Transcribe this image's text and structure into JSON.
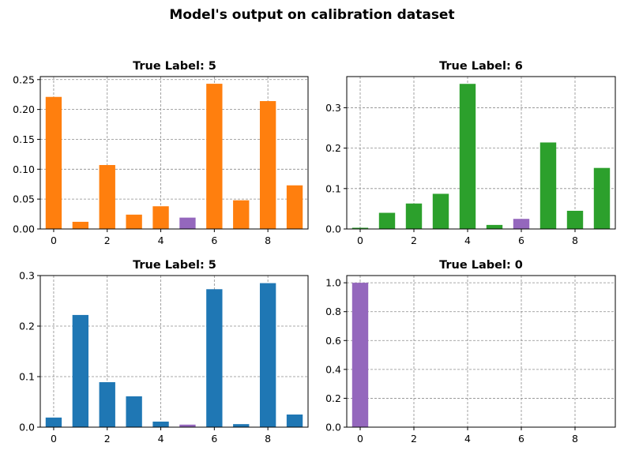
{
  "figure": {
    "title": "Model's output on calibration dataset"
  },
  "colors": {
    "highlight": "#9467bd",
    "grid": "#8c8c8c"
  },
  "chart_data": [
    {
      "type": "bar",
      "title": "True Label: 5",
      "categories": [
        0,
        1,
        2,
        3,
        4,
        5,
        6,
        7,
        8,
        9
      ],
      "values": [
        0.221,
        0.012,
        0.107,
        0.024,
        0.038,
        0.019,
        0.243,
        0.048,
        0.214,
        0.073
      ],
      "color": "#ff7f0e",
      "highlight_index": 5,
      "ylim": [
        0,
        0.255
      ],
      "xlim": [
        -0.5,
        9.5
      ],
      "xticks": [
        0,
        2,
        4,
        6,
        8
      ],
      "xtick_labels": [
        "0",
        "2",
        "4",
        "6",
        "8"
      ],
      "yticks": [
        0,
        0.05,
        0.1,
        0.15,
        0.2,
        0.25
      ],
      "ytick_labels": [
        "0.00",
        "0.05",
        "0.10",
        "0.15",
        "0.20",
        "0.25"
      ],
      "grid": true
    },
    {
      "type": "bar",
      "title": "True Label: 6",
      "categories": [
        0,
        1,
        2,
        3,
        4,
        5,
        6,
        7,
        8,
        9
      ],
      "values": [
        0.003,
        0.04,
        0.063,
        0.087,
        0.359,
        0.01,
        0.025,
        0.214,
        0.045,
        0.151
      ],
      "color": "#2ca02c",
      "highlight_index": 6,
      "ylim": [
        0,
        0.377
      ],
      "xlim": [
        -0.5,
        9.5
      ],
      "xticks": [
        0,
        2,
        4,
        6,
        8
      ],
      "xtick_labels": [
        "0",
        "2",
        "4",
        "6",
        "8"
      ],
      "yticks": [
        0,
        0.1,
        0.2,
        0.3
      ],
      "ytick_labels": [
        "0.0",
        "0.1",
        "0.2",
        "0.3"
      ],
      "grid": true
    },
    {
      "type": "bar",
      "title": "True Label: 5",
      "categories": [
        0,
        1,
        2,
        3,
        4,
        5,
        6,
        7,
        8,
        9
      ],
      "values": [
        0.019,
        0.222,
        0.089,
        0.061,
        0.011,
        0.005,
        0.273,
        0.006,
        0.285,
        0.025
      ],
      "color": "#1f77b4",
      "highlight_index": 5,
      "ylim": [
        0,
        0.3
      ],
      "xlim": [
        -0.5,
        9.5
      ],
      "xticks": [
        0,
        2,
        4,
        6,
        8
      ],
      "xtick_labels": [
        "0",
        "2",
        "4",
        "6",
        "8"
      ],
      "yticks": [
        0,
        0.1,
        0.2,
        0.3
      ],
      "ytick_labels": [
        "0.0",
        "0.1",
        "0.2",
        "0.3"
      ],
      "grid": true
    },
    {
      "type": "bar",
      "title": "True Label: 0",
      "categories": [
        0,
        1,
        2,
        3,
        4,
        5,
        6,
        7,
        8,
        9
      ],
      "values": [
        1.0,
        0,
        0,
        0,
        0,
        0,
        0,
        0,
        0,
        0
      ],
      "color": "#9467bd",
      "highlight_index": 0,
      "ylim": [
        0,
        1.05
      ],
      "xlim": [
        -0.5,
        9.5
      ],
      "xticks": [
        0,
        2,
        4,
        6,
        8
      ],
      "xtick_labels": [
        "0",
        "2",
        "4",
        "6",
        "8"
      ],
      "yticks": [
        0,
        0.2,
        0.4,
        0.6,
        0.8,
        1.0
      ],
      "ytick_labels": [
        "0.0",
        "0.2",
        "0.4",
        "0.6",
        "0.8",
        "1.0"
      ],
      "grid": true
    }
  ]
}
